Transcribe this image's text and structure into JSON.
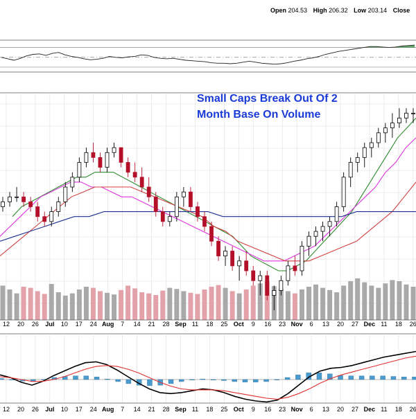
{
  "header": {
    "open_label": "Open",
    "open_value": "204.53",
    "high_label": "High",
    "high_value": "206.32",
    "low_label": "Low",
    "low_value": "203.14",
    "close_label": "Close"
  },
  "annotation": {
    "line1": "Small Caps Break Out Of 2",
    "line2": "Month Base On Volume"
  },
  "colors": {
    "up": "#000000",
    "down": "#b4102a",
    "vol_up": "#a9a9a9",
    "vol_down": "#e3a1a9",
    "ma_fast": "#2e8b2e",
    "ma_mid": "#dd33dd",
    "ma_slow": "#d04040",
    "ma_long": "#1c2f8f",
    "annotation": "#1a3ad8",
    "macd_line": "#000000",
    "macd_signal": "#e03030",
    "macd_hist": "#4a9ccf",
    "rsi_fill": "#4e9a5a"
  },
  "chart_data": [
    {
      "type": "line",
      "panel": "rsi",
      "indicator": "RSI",
      "ylim": [
        20,
        85
      ],
      "reference_lines": [
        70,
        50,
        30
      ],
      "series": [
        {
          "values": [
            50,
            47,
            44,
            48,
            53,
            56,
            57,
            54,
            58,
            60,
            55,
            52,
            50,
            47,
            45,
            46,
            48,
            52,
            50,
            49,
            51,
            52,
            55,
            54,
            50,
            48,
            47,
            48,
            46,
            44,
            43,
            42,
            41,
            39,
            38,
            38,
            37,
            38,
            40,
            42,
            40,
            38,
            37,
            36,
            37,
            39,
            42,
            44,
            47,
            49,
            52,
            56,
            59,
            62,
            64,
            66,
            68,
            70,
            72,
            72,
            71,
            70,
            71,
            73,
            74,
            75
          ]
        }
      ]
    },
    {
      "type": "candlestick",
      "panel": "price",
      "x_tick_labels": [
        "12",
        "20",
        "26",
        "Jul",
        "10",
        "17",
        "24",
        "Aug",
        "7",
        "14",
        "21",
        "28",
        "Sep",
        "11",
        "18",
        "25",
        "Oct",
        "9",
        "16",
        "23",
        "Nov",
        "6",
        "13",
        "20",
        "27",
        "Dec",
        "11",
        "18",
        "26"
      ],
      "candles": [
        [
          186,
          188,
          185,
          187
        ],
        [
          187,
          189,
          186,
          188
        ],
        [
          188,
          190,
          187,
          188
        ],
        [
          188,
          189,
          186,
          187
        ],
        [
          187,
          188,
          185,
          186
        ],
        [
          186,
          187,
          183,
          184
        ],
        [
          184,
          185,
          182,
          183
        ],
        [
          183,
          186,
          182,
          185
        ],
        [
          185,
          188,
          184,
          187
        ],
        [
          187,
          191,
          186,
          190
        ],
        [
          190,
          193,
          189,
          192
        ],
        [
          192,
          196,
          191,
          195
        ],
        [
          195,
          198,
          194,
          197
        ],
        [
          197,
          199,
          195,
          196
        ],
        [
          196,
          197,
          193,
          194
        ],
        [
          194,
          198,
          193,
          197
        ],
        [
          197,
          199,
          196,
          198
        ],
        [
          198,
          198,
          194,
          195
        ],
        [
          195,
          196,
          192,
          193
        ],
        [
          193,
          195,
          191,
          192
        ],
        [
          192,
          194,
          189,
          190
        ],
        [
          190,
          192,
          187,
          188
        ],
        [
          188,
          189,
          184,
          185
        ],
        [
          185,
          186,
          182,
          183
        ],
        [
          183,
          185,
          182,
          184
        ],
        [
          184,
          189,
          183,
          188
        ],
        [
          188,
          190,
          186,
          189
        ],
        [
          189,
          190,
          185,
          186
        ],
        [
          186,
          187,
          183,
          184
        ],
        [
          184,
          185,
          181,
          182
        ],
        [
          182,
          183,
          178,
          179
        ],
        [
          179,
          180,
          175,
          176
        ],
        [
          176,
          178,
          174,
          177
        ],
        [
          177,
          178,
          173,
          174
        ],
        [
          174,
          176,
          171,
          175
        ],
        [
          175,
          177,
          172,
          173
        ],
        [
          173,
          174,
          170,
          171
        ],
        [
          171,
          173,
          168,
          172
        ],
        [
          172,
          173,
          167,
          168
        ],
        [
          168,
          170,
          165,
          169
        ],
        [
          169,
          172,
          168,
          171
        ],
        [
          171,
          175,
          170,
          174
        ],
        [
          174,
          176,
          172,
          173
        ],
        [
          173,
          179,
          172,
          178
        ],
        [
          178,
          181,
          176,
          180
        ],
        [
          180,
          182,
          178,
          181
        ],
        [
          181,
          183,
          179,
          182
        ],
        [
          182,
          184,
          180,
          183
        ],
        [
          183,
          187,
          182,
          186
        ],
        [
          186,
          193,
          185,
          192
        ],
        [
          192,
          196,
          190,
          195
        ],
        [
          195,
          197,
          193,
          196
        ],
        [
          196,
          199,
          194,
          198
        ],
        [
          198,
          200,
          196,
          199
        ],
        [
          199,
          202,
          198,
          201
        ],
        [
          201,
          203,
          199,
          202
        ],
        [
          202,
          205,
          200,
          203
        ],
        [
          203,
          206,
          202,
          204
        ],
        [
          204,
          206,
          203,
          205
        ],
        [
          205,
          206,
          203,
          205
        ]
      ],
      "moving_averages": [
        {
          "values": [
            184,
            186,
            187,
            188,
            189,
            190,
            191,
            192,
            192,
            193,
            193,
            193,
            192,
            191,
            190,
            189,
            188,
            187,
            186,
            185,
            184,
            183,
            182,
            181,
            180,
            178,
            176,
            175,
            174,
            173,
            173,
            174,
            175,
            177,
            179,
            181,
            183,
            185,
            188,
            191,
            194,
            197,
            200,
            202,
            204
          ]
        },
        {
          "values": [
            180,
            182,
            184,
            186,
            188,
            189,
            190,
            191,
            191,
            190,
            190,
            189,
            188,
            188,
            187,
            186,
            185,
            184,
            183,
            182,
            181,
            180,
            179,
            178,
            177,
            176,
            175,
            175,
            175,
            176,
            177,
            178,
            180,
            182,
            184,
            186,
            188,
            190,
            193,
            195,
            198,
            200
          ]
        },
        {
          "values": [
            176,
            178,
            180,
            182,
            184,
            186,
            188,
            189,
            190,
            190,
            190,
            190,
            189,
            188,
            187,
            186,
            185,
            184,
            182,
            181,
            179,
            178,
            177,
            176,
            175,
            175,
            175,
            176,
            177,
            178,
            179,
            181,
            183,
            185,
            188,
            191
          ]
        },
        {
          "values": [
            179,
            180,
            181,
            182,
            183,
            184,
            184,
            185,
            185,
            185,
            185,
            185,
            185,
            185,
            185,
            184,
            184,
            184,
            184,
            184,
            184,
            184,
            184,
            184,
            185,
            185,
            185,
            185,
            185
          ]
        }
      ],
      "volume": [
        62,
        55,
        48,
        60,
        58,
        52,
        47,
        65,
        50,
        44,
        48,
        55,
        60,
        58,
        52,
        49,
        46,
        54,
        62,
        57,
        50,
        48,
        45,
        53,
        58,
        56,
        52,
        49,
        47,
        55,
        60,
        63,
        58,
        52,
        48,
        55,
        62,
        66,
        70,
        61,
        56,
        52,
        48,
        55,
        60,
        64,
        58,
        54,
        50,
        62,
        70,
        75,
        68,
        62,
        58,
        66,
        72,
        70,
        64,
        60
      ]
    },
    {
      "type": "line",
      "panel": "macd",
      "indicator": "MACD",
      "series": [
        {
          "values": [
            0.5,
            0.2,
            -0.3,
            -0.6,
            -0.2,
            0.4,
            0.9,
            1.4,
            1.8,
            1.9,
            1.6,
            1.0,
            0.3,
            -0.4,
            -1.0,
            -1.4,
            -1.5,
            -1.4,
            -1.2,
            -1.0,
            -1.1,
            -1.4,
            -1.8,
            -2.1,
            -2.3,
            -2.4,
            -2.2,
            -1.5,
            -0.6,
            0.3,
            0.9,
            1.2,
            1.3,
            1.5,
            1.8,
            2.1,
            2.4,
            2.6,
            2.8,
            3.0
          ]
        },
        {
          "values": [
            0.3,
            0.2,
            0.0,
            -0.2,
            -0.2,
            0.0,
            0.3,
            0.7,
            1.1,
            1.4,
            1.5,
            1.4,
            1.1,
            0.7,
            0.2,
            -0.3,
            -0.7,
            -1.0,
            -1.1,
            -1.1,
            -1.1,
            -1.2,
            -1.4,
            -1.6,
            -1.8,
            -2.0,
            -2.1,
            -1.9,
            -1.5,
            -1.0,
            -0.4,
            0.1,
            0.5,
            0.8,
            1.1,
            1.4,
            1.7,
            2.0,
            2.3,
            2.5
          ]
        }
      ],
      "histogram": [
        0.2,
        0.0,
        -0.3,
        -0.4,
        0.0,
        0.4,
        0.6,
        0.7,
        0.7,
        0.5,
        0.1,
        -0.4,
        -0.8,
        -1.1,
        -1.2,
        -1.1,
        -0.8,
        -0.4,
        -0.1,
        0.1,
        0.0,
        -0.2,
        -0.4,
        -0.5,
        -0.5,
        -0.4,
        -0.1,
        0.4,
        0.9,
        1.3,
        1.3,
        1.1,
        0.8,
        0.7,
        0.7,
        0.7,
        0.7,
        0.6,
        0.5,
        0.5
      ]
    }
  ]
}
